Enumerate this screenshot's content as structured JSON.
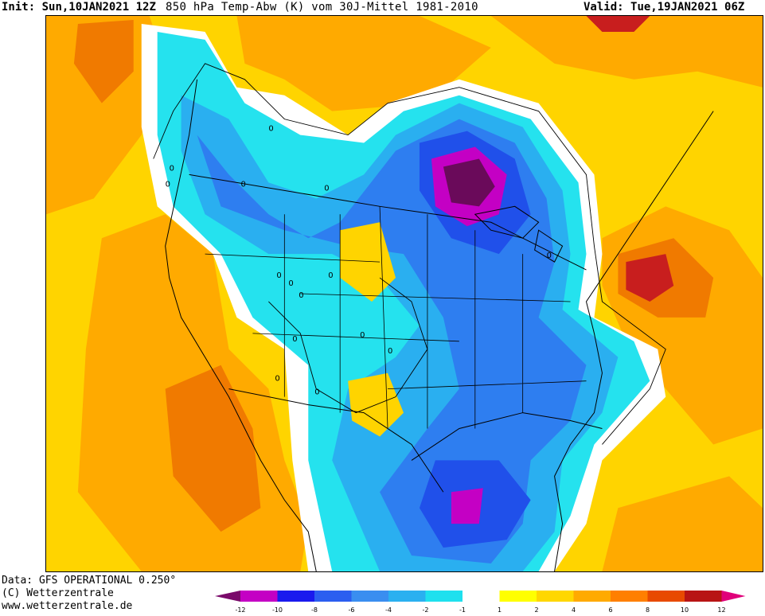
{
  "header": {
    "init_label": "Init:",
    "init_value": "Sun,10JAN2021 12Z",
    "title": "850 hPa Temp-Abw (K) vom 30J-Mittel 1981-2010",
    "valid_label": "Valid:",
    "valid_value": "Tue,19JAN2021 06Z"
  },
  "footer": {
    "data_line": "Data: GFS OPERATIONAL 0.250°",
    "copyright": "(C) Wetterzentrale",
    "url": "www.wetterzentrale.de"
  },
  "contour_labels": [
    "0",
    "0",
    "0",
    "0",
    "0",
    "0",
    "0",
    "0",
    "0",
    "0",
    "0",
    "0",
    "0",
    "0",
    "0"
  ],
  "legend": {
    "ticks": [
      "-12",
      "-10",
      "-8",
      "-6",
      "-4",
      "-2",
      "-1",
      "1",
      "2",
      "4",
      "6",
      "8",
      "10",
      "12"
    ],
    "colors": [
      "#7a0a6a",
      "#c400c4",
      "#1a1aee",
      "#2b5ef0",
      "#3a8ef0",
      "#2ab0f0",
      "#1ee0ee",
      "#ffffff",
      "#ffff00",
      "#ffd700",
      "#ffaa00",
      "#ff7f00",
      "#e84a00",
      "#b81414",
      "#e0007a"
    ]
  },
  "map_colors": {
    "background": "#ffd400",
    "warm1": "#ffaa00",
    "warm2": "#f07a00",
    "warm3": "#c81e1e",
    "neutral": "#ffffff",
    "cool1": "#25e2ee",
    "cool2": "#2aaff0",
    "cool3": "#2e7ef0",
    "cool4": "#2050ea",
    "cool5": "#c400c4",
    "cool6": "#6a0a5a"
  }
}
